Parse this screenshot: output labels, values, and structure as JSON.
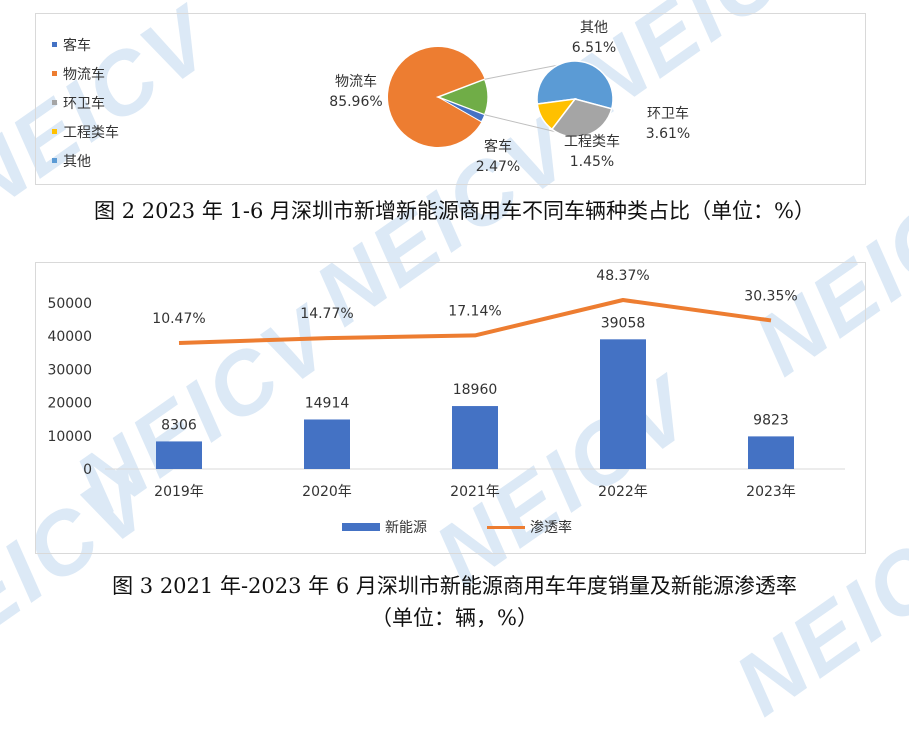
{
  "chart_data": [
    {
      "type": "pie",
      "categories": [
        "客车",
        "物流车",
        "环卫车",
        "工程类车",
        "其他"
      ],
      "values": [
        2.47,
        85.96,
        3.61,
        1.45,
        6.51
      ],
      "labels": [
        "2.47%",
        "85.96%",
        "3.61%",
        "1.45%",
        "6.51%"
      ],
      "colors": [
        "#4472c4",
        "#ed7d31",
        "#a5a5a5",
        "#ffc000",
        "#5b9bd5"
      ],
      "pie_of_pie_color": "#70ad47",
      "legend_position": "left",
      "caption": "图 2 2023 年 1-6 月深圳市新增新能源商用车不同车辆种类占比（单位：%）"
    },
    {
      "type": "bar+line",
      "categories": [
        "2019年",
        "2020年",
        "2021年",
        "2022年",
        "2023年"
      ],
      "series": [
        {
          "name": "新能源",
          "type": "bar",
          "values": [
            8306,
            14914,
            18960,
            39058,
            9823
          ],
          "color": "#4472c4"
        },
        {
          "name": "渗透率",
          "type": "line",
          "values": [
            10.47,
            14.77,
            17.14,
            48.37,
            30.35
          ],
          "labels": [
            "10.47%",
            "14.77%",
            "17.14%",
            "48.37%",
            "30.35%"
          ],
          "color": "#ed7d31"
        }
      ],
      "yticks": [
        "0",
        "10000",
        "20000",
        "30000",
        "40000",
        "50000"
      ],
      "ylim": [
        0,
        50000
      ],
      "legend_position": "bottom",
      "caption_line1": "图 3 2021 年-2023 年 6 月深圳市新能源商用车年度销量及新能源渗透率",
      "caption_line2": "（单位：辆，%）"
    }
  ],
  "watermark": "NEICV"
}
